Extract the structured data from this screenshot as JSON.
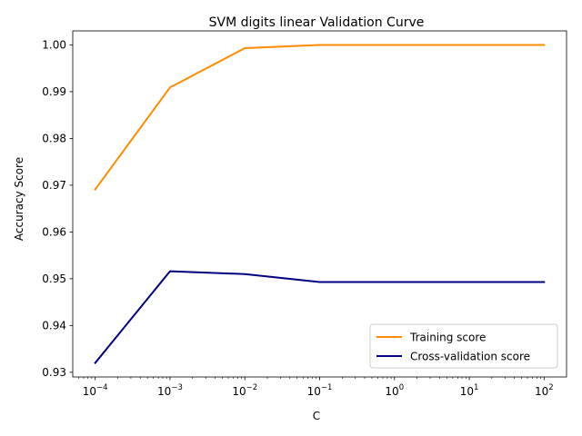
{
  "chart_data": {
    "type": "line",
    "title": "SVM digits linear Validation Curve",
    "xlabel": "C",
    "ylabel": "Accuracy Score",
    "xscale": "log",
    "x": [
      0.0001,
      0.001,
      0.01,
      0.1,
      1,
      10,
      100
    ],
    "x_tick_labels": [
      {
        "base": "10",
        "exp": "−4"
      },
      {
        "base": "10",
        "exp": "−3"
      },
      {
        "base": "10",
        "exp": "−2"
      },
      {
        "base": "10",
        "exp": "−1"
      },
      {
        "base": "10",
        "exp": "0"
      },
      {
        "base": "10",
        "exp": "1"
      },
      {
        "base": "10",
        "exp": "2"
      }
    ],
    "y_ticks": [
      "0.93",
      "0.94",
      "0.95",
      "0.96",
      "0.97",
      "0.98",
      "0.99",
      "1.00"
    ],
    "ylim": [
      0.929,
      1.003
    ],
    "series": [
      {
        "name": "Training score",
        "color": "#ff8c00",
        "values": [
          0.9691,
          0.9909,
          0.9993,
          1.0,
          1.0,
          1.0,
          1.0
        ]
      },
      {
        "name": "Cross-validation score",
        "color": "#000080",
        "values": [
          0.932,
          0.9516,
          0.951,
          0.9493,
          0.9493,
          0.9493,
          0.9493
        ]
      }
    ],
    "legend_position": "lower-right",
    "grid": false
  }
}
